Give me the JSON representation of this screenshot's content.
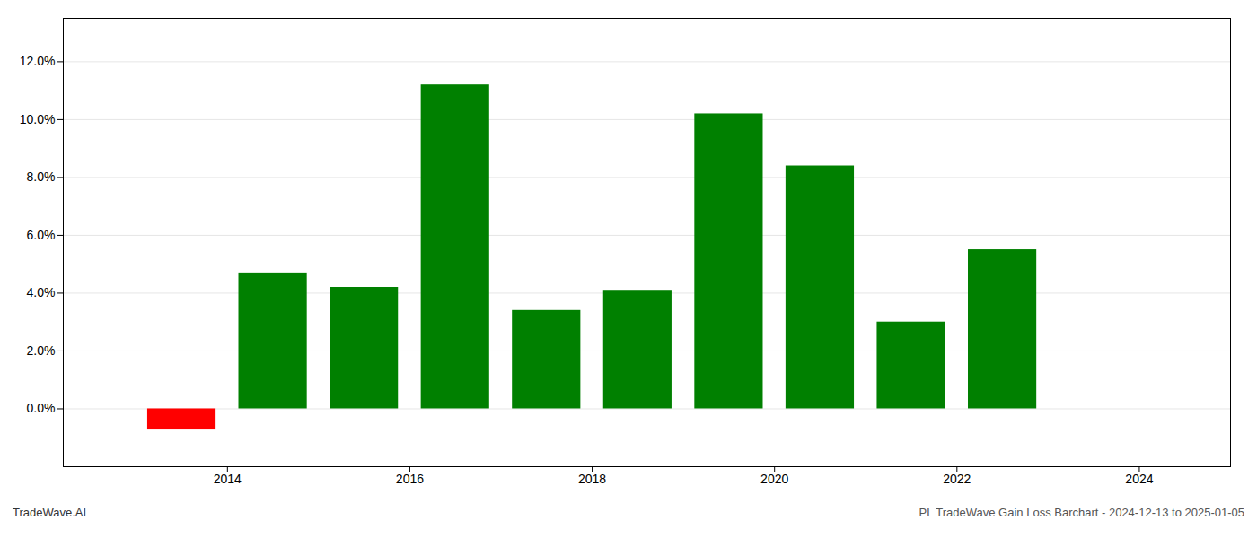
{
  "chart_data": {
    "type": "bar",
    "x": [
      2013,
      2014,
      2015,
      2016,
      2017,
      2018,
      2019,
      2020,
      2021,
      2022,
      2023
    ],
    "values": [
      -0.007,
      0.047,
      0.042,
      0.112,
      0.034,
      0.041,
      0.102,
      0.084,
      0.03,
      0.055,
      0.0
    ],
    "colors": [
      "#ff0000",
      "#008000",
      "#008000",
      "#008000",
      "#008000",
      "#008000",
      "#008000",
      "#008000",
      "#008000",
      "#008000",
      "#008000"
    ],
    "xlim": [
      2012.2,
      2025.0
    ],
    "xticks": [
      2014,
      2016,
      2018,
      2020,
      2022,
      2024
    ],
    "ylim": [
      -0.02,
      0.135
    ],
    "yticks": [
      {
        "value": 0.0,
        "label": "0.0%"
      },
      {
        "value": 0.02,
        "label": "2.0%"
      },
      {
        "value": 0.04,
        "label": "4.0%"
      },
      {
        "value": 0.06,
        "label": "6.0%"
      },
      {
        "value": 0.08,
        "label": "8.0%"
      },
      {
        "value": 0.1,
        "label": "10.0%"
      },
      {
        "value": 0.12,
        "label": "12.0%"
      }
    ],
    "grid": true,
    "annotations": [
      "TradeWave.AI",
      "PL TradeWave Gain Loss Barchart - 2024-12-13 to 2025-01-05"
    ]
  }
}
